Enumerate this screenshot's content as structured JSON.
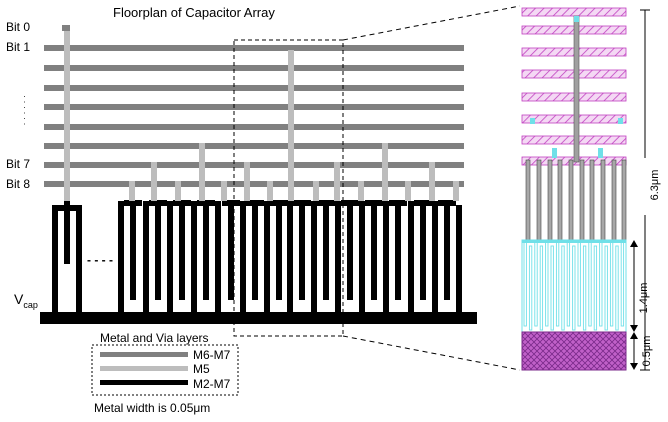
{
  "title": "Floorplan of Capacitor Array",
  "bits": {
    "bit0": "Bit 0",
    "bit1": "Bit 1",
    "bit7": "Bit 7",
    "bit8": "Bit 8",
    "ellipsis": "· · · · · ·"
  },
  "vcap": {
    "main": "V",
    "sub": "cap"
  },
  "dashes": "- - - -",
  "legend": {
    "title": "Metal and Via layers",
    "items": [
      {
        "label": "M6-M7",
        "color": "#808080"
      },
      {
        "label": "M5",
        "color": "#bdbdbd"
      },
      {
        "label": "M2-M7",
        "color": "#000000"
      }
    ]
  },
  "metal_width_note": "Metal width is 0.05μm",
  "dimensions": {
    "total": "6.3μm",
    "middle": "1.4μm",
    "bottom": "0.5μm"
  },
  "colors": {
    "bus": "#808080",
    "via": "#bdbdbd",
    "finger": "#000000",
    "layout_magenta": "#c040c0",
    "layout_cyan": "#6fe0e8"
  }
}
